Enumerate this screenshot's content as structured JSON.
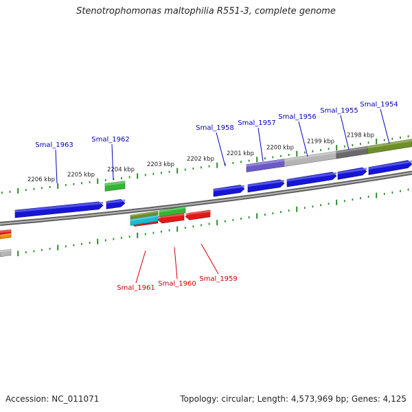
{
  "title": "Stenotrophomonas maltophilia R551-3, complete genome",
  "footer": {
    "accession": "Accession: NC_011071",
    "summary": "Topology: circular; Length: 4,573,969 bp; Genes: 4,125"
  },
  "colors": {
    "background": "#ffffff",
    "backbone": "#777777",
    "tick": "#2a8a2a",
    "forward_label": "#0000bb",
    "reverse_label": "#cc0000",
    "gene_blue": "#1515d8",
    "gene_red": "#e01818",
    "gene_green": "#35b535",
    "gene_lightblue": "#5a5ae8",
    "feature_purple": "#6b5bc8",
    "feature_grey": "#b5b5b5",
    "feature_darkgrey": "#6a6a6a",
    "feature_olive": "#6e8e28",
    "feature_orange": "#f08a00",
    "feature_cyan": "#1ab9d0"
  },
  "kbp_labels": [
    "2206 kbp",
    "2205 kbp",
    "2204 kbp",
    "2203 kbp",
    "2202 kbp",
    "2201 kbp",
    "2200 kbp",
    "2199 kbp",
    "2198 kbp"
  ],
  "forward_genes": [
    "Smal_1963",
    "Smal_1962",
    "Smal_1958",
    "Smal_1957",
    "Smal_1956",
    "Smal_1955",
    "Smal_1954"
  ],
  "reverse_genes": [
    "Smal_1961",
    "Smal_1960",
    "Smal_1959"
  ]
}
